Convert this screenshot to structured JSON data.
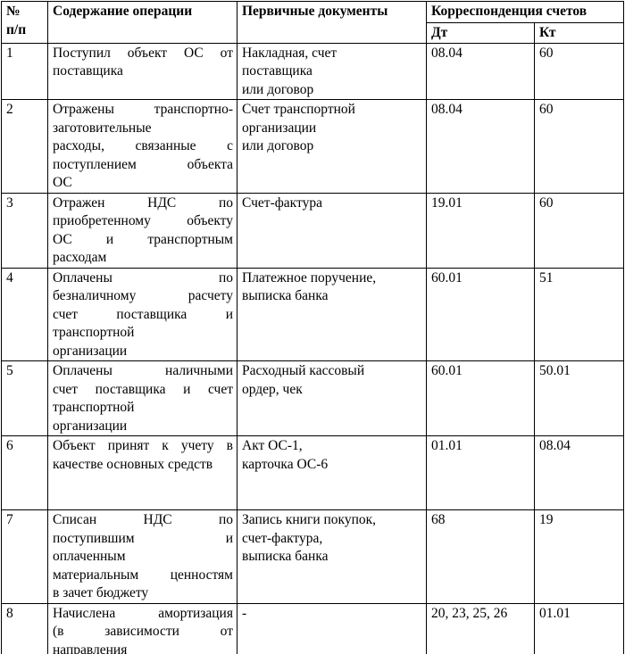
{
  "header": {
    "num": "№\nп/п",
    "content": "Содержание операции",
    "docs": "Первичные документы",
    "corr": "Корреспонденция счетов",
    "dt": "Дт",
    "kt": "Кт"
  },
  "rows": [
    {
      "num": "1",
      "content": "Поступил объект ОС от\nпоставщика",
      "docs": "Накладная, счет\nпоставщика\nили договор",
      "dt": "08.04",
      "kt": "60"
    },
    {
      "num": "2",
      "content": "Отражены транспортно-\nзаготовительные\nрасходы, связанные с\nпоступлением объекта\nОС",
      "docs": "Счет транспортной\nорганизации\nили договор",
      "dt": "08.04",
      "kt": "60"
    },
    {
      "num": "3",
      "content": "Отражен НДС по\nприобретенному объекту\nОС и транспортным\nрасходам",
      "docs": "Счет-фактура",
      "dt": "19.01",
      "kt": "60"
    },
    {
      "num": "4",
      "content": "Оплачены по\nбезналичному расчету\nсчет поставщика и\nтранспортной\nорганизации",
      "docs": "Платежное поручение,\n выписка банка",
      "dt": "60.01",
      "kt": "51"
    },
    {
      "num": "5",
      "content": "Оплачены наличными\nсчет поставщика и счет\nтранспортной\nорганизации",
      "docs": "Расходный кассовый\nордер, чек",
      "dt": "60.01",
      "kt": "50.01"
    },
    {
      "num": "6",
      "content": "Объект принят к учету в\nкачестве основных средств",
      "docs": "Акт ОС-1,\nкарточка ОС-6",
      "dt": "01.01",
      "kt": "08.04"
    },
    {
      "num": "7",
      "content": "Списан НДС по\nпоступившим и\nоплаченным\nматериальным ценностям\nв зачет бюджету",
      "docs": "Запись книги покупок,\n счет-фактура,\nвыписка банка",
      "dt": "68",
      "kt": "19"
    },
    {
      "num": "8",
      "content": "Начислена амортизация\n(в зависимости от\nнаправления\nиспользования объекта)",
      "docs": "-",
      "dt": "20, 23, 25, 26",
      "kt": "01.01"
    }
  ]
}
